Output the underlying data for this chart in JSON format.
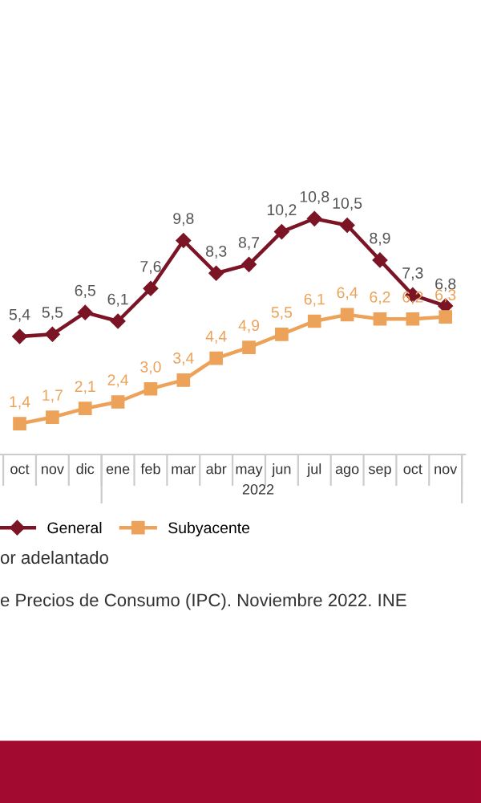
{
  "chart_data": {
    "type": "line",
    "categories": [
      "oct",
      "nov",
      "dic",
      "ene",
      "feb",
      "mar",
      "abr",
      "may",
      "jun",
      "jul",
      "ago",
      "sep",
      "oct",
      "nov"
    ],
    "xlabel": "2022",
    "legend": "bottom",
    "grid": false,
    "series": [
      {
        "name": "General",
        "color": "#7b1424",
        "marker": "diamond",
        "values": [
          5.4,
          5.5,
          6.5,
          6.1,
          7.6,
          9.8,
          8.3,
          8.7,
          10.2,
          10.8,
          10.5,
          8.9,
          7.3,
          6.8
        ],
        "value_labels": [
          "5,4",
          "5,5",
          "6,5",
          "6,1",
          "7,6",
          "9,8",
          "8,3",
          "8,7",
          "10,2",
          "10,8",
          "10,5",
          "8,9",
          "7,3",
          "6,8"
        ]
      },
      {
        "name": "Subyacente",
        "color": "#eda25a",
        "marker": "square",
        "values": [
          1.4,
          1.7,
          2.1,
          2.4,
          3.0,
          3.4,
          4.4,
          4.9,
          5.5,
          6.1,
          6.4,
          6.2,
          6.2,
          6.3
        ],
        "value_labels": [
          "1,4",
          "1,7",
          "2,1",
          "2,4",
          "3,0",
          "3,4",
          "4,4",
          "4,9",
          "5,5",
          "6,1",
          "6,4",
          "6,2",
          "6,2",
          "6,3"
        ]
      }
    ],
    "annotations": [
      "or adelantado",
      "e Precios de Consumo (IPC). Noviembre 2022. INE"
    ]
  }
}
